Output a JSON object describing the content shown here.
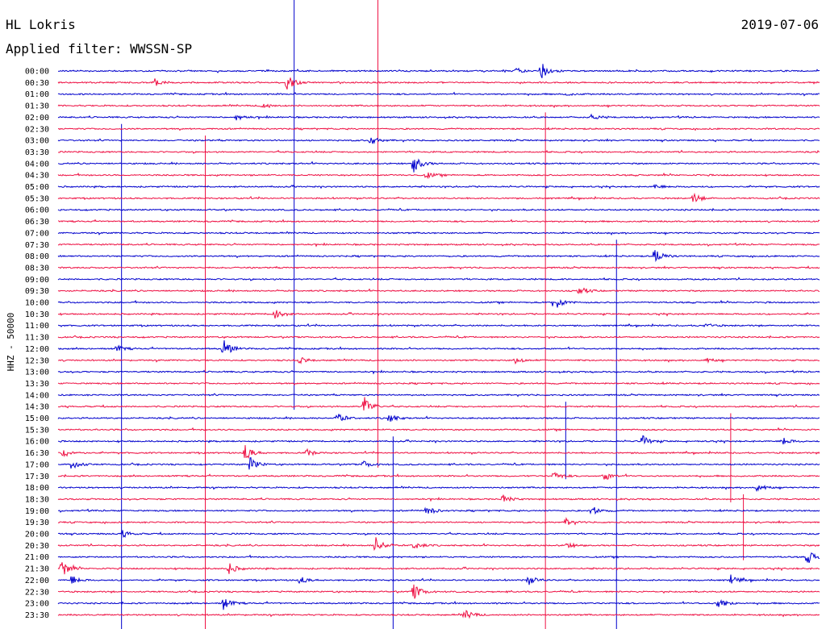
{
  "header": {
    "station": "HL Lokris",
    "date": "2019-07-06",
    "filter_label": "Applied filter: WWSSN-SP"
  },
  "chart_data": {
    "type": "line",
    "title": "HL Lokris",
    "date": "2019-07-06",
    "channel_label": "HHZ - 50000",
    "y_categories": [
      "00:00",
      "00:30",
      "01:00",
      "01:30",
      "02:00",
      "02:30",
      "03:00",
      "03:30",
      "04:00",
      "04:30",
      "05:00",
      "05:30",
      "06:00",
      "06:30",
      "07:00",
      "07:30",
      "08:00",
      "08:30",
      "09:00",
      "09:30",
      "10:00",
      "10:30",
      "11:00",
      "11:30",
      "12:00",
      "12:30",
      "13:00",
      "13:30",
      "14:00",
      "14:30",
      "15:00",
      "15:30",
      "16:00",
      "16:30",
      "17:00",
      "17:30",
      "18:00",
      "18:30",
      "19:00",
      "19:30",
      "20:00",
      "20:30",
      "21:00",
      "21:30",
      "22:00",
      "22:30",
      "23:00",
      "23:30"
    ],
    "x_unit": "minutes within half-hour",
    "x_range": [
      0,
      30
    ],
    "trace_colors": [
      "#0000cc",
      "#ee1144"
    ],
    "grid": false,
    "events": [
      {
        "row": 0,
        "minute": 18.0,
        "amp": 1.0
      },
      {
        "row": 0,
        "minute": 19.0,
        "amp": 3.0
      },
      {
        "row": 1,
        "minute": 3.8,
        "amp": 1.2
      },
      {
        "row": 1,
        "minute": 9.0,
        "amp": 2.5
      },
      {
        "row": 2,
        "minute": 20.0,
        "amp": 0.5
      },
      {
        "row": 3,
        "minute": 8.0,
        "amp": 1.2
      },
      {
        "row": 4,
        "minute": 7.0,
        "amp": 1.0
      },
      {
        "row": 4,
        "minute": 21.0,
        "amp": 1.0
      },
      {
        "row": 6,
        "minute": 12.3,
        "amp": 1.5
      },
      {
        "row": 8,
        "minute": 14.0,
        "amp": 2.8
      },
      {
        "row": 9,
        "minute": 14.5,
        "amp": 1.0
      },
      {
        "row": 10,
        "minute": 23.5,
        "amp": 0.8
      },
      {
        "row": 11,
        "minute": 25.0,
        "amp": 1.5
      },
      {
        "row": 16,
        "minute": 23.5,
        "amp": 2.5
      },
      {
        "row": 19,
        "minute": 20.5,
        "amp": 1.5
      },
      {
        "row": 20,
        "minute": 19.5,
        "amp": 3.0
      },
      {
        "row": 21,
        "minute": 8.5,
        "amp": 2.0
      },
      {
        "row": 22,
        "minute": 25.5,
        "amp": 0.7
      },
      {
        "row": 24,
        "minute": 2.3,
        "amp": 1.0
      },
      {
        "row": 24,
        "minute": 6.5,
        "amp": 3.0
      },
      {
        "row": 25,
        "minute": 9.5,
        "amp": 1.0
      },
      {
        "row": 25,
        "minute": 18.0,
        "amp": 1.0
      },
      {
        "row": 25,
        "minute": 25.5,
        "amp": 0.8
      },
      {
        "row": 29,
        "minute": 12.0,
        "amp": 3.8
      },
      {
        "row": 30,
        "minute": 11.0,
        "amp": 1.5
      },
      {
        "row": 30,
        "minute": 13.0,
        "amp": 1.5
      },
      {
        "row": 32,
        "minute": 23.0,
        "amp": 1.8
      },
      {
        "row": 32,
        "minute": 28.5,
        "amp": 1.5
      },
      {
        "row": 33,
        "minute": 0.2,
        "amp": 1.5
      },
      {
        "row": 33,
        "minute": 7.3,
        "amp": 3.0
      },
      {
        "row": 33,
        "minute": 9.8,
        "amp": 1.0
      },
      {
        "row": 34,
        "minute": 0.5,
        "amp": 2.0
      },
      {
        "row": 34,
        "minute": 7.5,
        "amp": 2.8
      },
      {
        "row": 34,
        "minute": 12.0,
        "amp": 1.2
      },
      {
        "row": 35,
        "minute": 19.5,
        "amp": 1.5
      },
      {
        "row": 35,
        "minute": 21.5,
        "amp": 1.5
      },
      {
        "row": 36,
        "minute": 27.5,
        "amp": 1.5
      },
      {
        "row": 37,
        "minute": 17.5,
        "amp": 1.5
      },
      {
        "row": 38,
        "minute": 14.5,
        "amp": 1.5
      },
      {
        "row": 38,
        "minute": 21.0,
        "amp": 1.5
      },
      {
        "row": 39,
        "minute": 20.0,
        "amp": 1.0
      },
      {
        "row": 40,
        "minute": 2.5,
        "amp": 1.2
      },
      {
        "row": 41,
        "minute": 12.5,
        "amp": 2.5
      },
      {
        "row": 41,
        "minute": 14.0,
        "amp": 1.5
      },
      {
        "row": 41,
        "minute": 20.0,
        "amp": 1.0
      },
      {
        "row": 42,
        "minute": 29.5,
        "amp": 2.2
      },
      {
        "row": 43,
        "minute": 0.1,
        "amp": 3.0
      },
      {
        "row": 43,
        "minute": 6.7,
        "amp": 1.8
      },
      {
        "row": 44,
        "minute": 0.5,
        "amp": 1.5
      },
      {
        "row": 44,
        "minute": 9.5,
        "amp": 1.2
      },
      {
        "row": 44,
        "minute": 18.5,
        "amp": 1.5
      },
      {
        "row": 44,
        "minute": 26.5,
        "amp": 1.5
      },
      {
        "row": 45,
        "minute": 14.0,
        "amp": 2.5
      },
      {
        "row": 46,
        "minute": 6.5,
        "amp": 2.0
      },
      {
        "row": 46,
        "minute": 26.0,
        "amp": 2.0
      },
      {
        "row": 47,
        "minute": 16.0,
        "amp": 2.0
      }
    ],
    "vertical_markers": [
      {
        "minute": 9.3,
        "color": "#0000cc",
        "row_from": 0,
        "row_to": 29
      },
      {
        "minute": 12.6,
        "color": "#ee1144",
        "row_from": 0,
        "row_to": 34
      },
      {
        "minute": 19.2,
        "color": "#ee1144",
        "row_from": 4,
        "row_to": 47
      },
      {
        "minute": 2.5,
        "color": "#0000cc",
        "row_from": 5,
        "row_to": 47
      },
      {
        "minute": 5.8,
        "color": "#ee1144",
        "row_from": 6,
        "row_to": 47
      },
      {
        "minute": 22.0,
        "color": "#0000cc",
        "row_from": 15,
        "row_to": 47
      },
      {
        "minute": 13.2,
        "color": "#0000cc",
        "row_from": 32,
        "row_to": 47
      },
      {
        "minute": 20.0,
        "color": "#0000cc",
        "row_from": 29,
        "row_to": 35
      },
      {
        "minute": 26.5,
        "color": "#ee1144",
        "row_from": 30,
        "row_to": 37
      },
      {
        "minute": 27.0,
        "color": "#ee1144",
        "row_from": 37,
        "row_to": 42
      }
    ]
  }
}
